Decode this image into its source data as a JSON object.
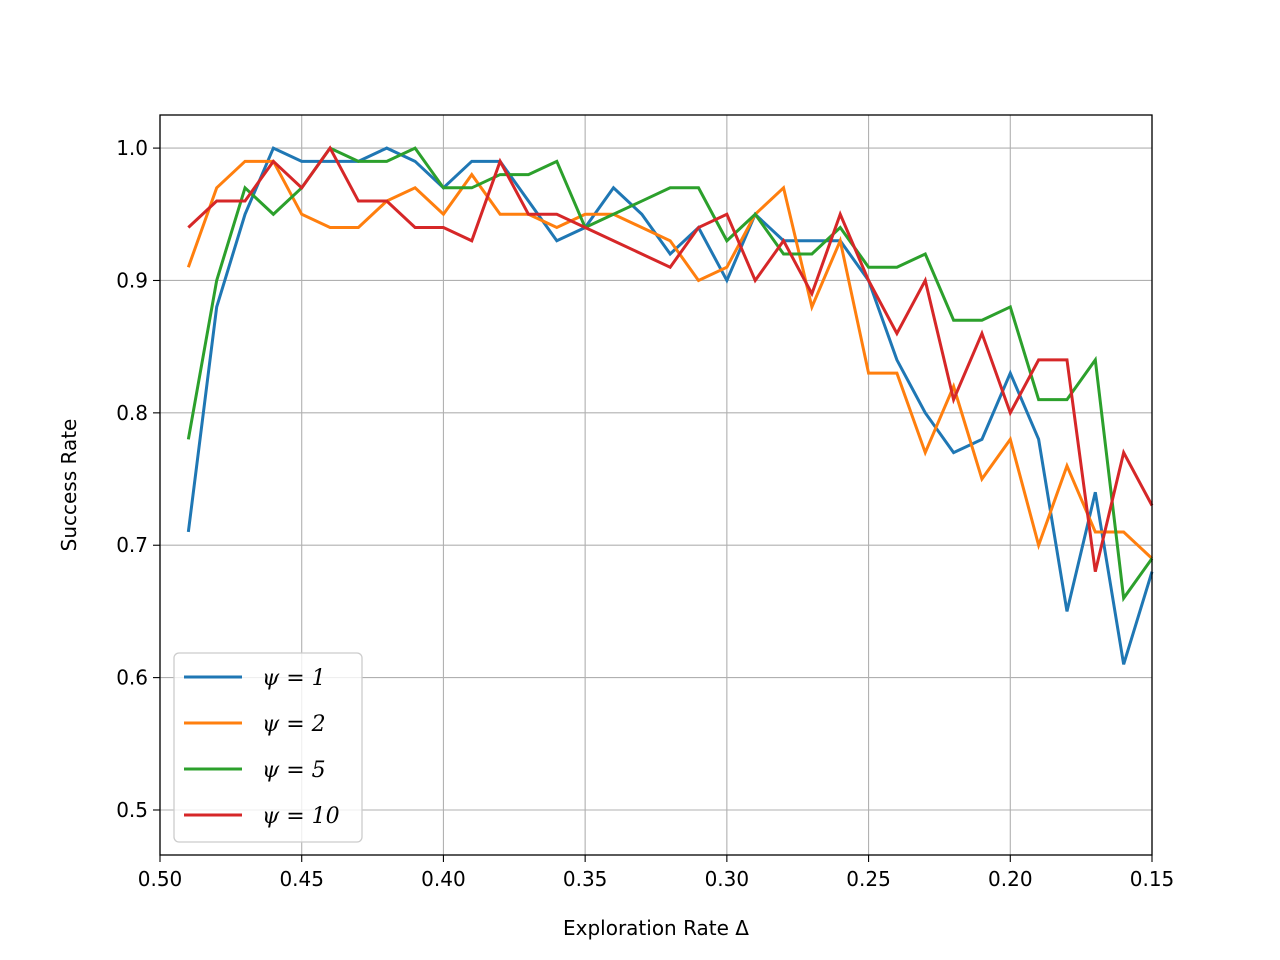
{
  "chart_data": {
    "type": "line",
    "xlabel": "Exploration Rate Δ",
    "ylabel": "Success Rate",
    "xlim": [
      0.5,
      0.15
    ],
    "ylim": [
      0.466,
      1.025
    ],
    "x_ticks": [
      "0.50",
      "0.45",
      "0.40",
      "0.35",
      "0.30",
      "0.25",
      "0.20",
      "0.15"
    ],
    "y_ticks": [
      "0.5",
      "0.6",
      "0.7",
      "0.8",
      "0.9",
      "1.0"
    ],
    "grid": true,
    "legend_position": "lower-left",
    "x": [
      0.49,
      0.48,
      0.47,
      0.46,
      0.45,
      0.44,
      0.43,
      0.42,
      0.41,
      0.4,
      0.39,
      0.38,
      0.37,
      0.36,
      0.35,
      0.34,
      0.33,
      0.32,
      0.31,
      0.3,
      0.29,
      0.28,
      0.27,
      0.26,
      0.25,
      0.24,
      0.23,
      0.22,
      0.21,
      0.2,
      0.19,
      0.18,
      0.17,
      0.16,
      0.15
    ],
    "series": [
      {
        "name": "ψ = 1",
        "color": "#1f77b4",
        "values": [
          0.71,
          0.88,
          0.95,
          1.0,
          0.99,
          0.99,
          0.99,
          1.0,
          0.99,
          0.97,
          0.99,
          0.99,
          0.96,
          0.93,
          0.94,
          0.97,
          0.95,
          0.92,
          0.94,
          0.9,
          0.95,
          0.93,
          0.93,
          0.93,
          0.9,
          0.84,
          0.8,
          0.77,
          0.78,
          0.83,
          0.78,
          0.65,
          0.74,
          0.61,
          0.68
        ]
      },
      {
        "name": "ψ = 2",
        "color": "#ff7f0e",
        "values": [
          0.91,
          0.97,
          0.99,
          0.99,
          0.95,
          0.94,
          0.94,
          0.96,
          0.97,
          0.95,
          0.98,
          0.95,
          0.95,
          0.94,
          0.95,
          0.95,
          0.94,
          0.93,
          0.9,
          0.91,
          0.95,
          0.97,
          0.88,
          0.93,
          0.83,
          0.83,
          0.77,
          0.82,
          0.75,
          0.78,
          0.7,
          0.76,
          0.71,
          0.71,
          0.69
        ]
      },
      {
        "name": "ψ = 5",
        "color": "#2ca02c",
        "values": [
          0.78,
          0.9,
          0.97,
          0.95,
          0.97,
          1.0,
          0.99,
          0.99,
          1.0,
          0.97,
          0.97,
          0.98,
          0.98,
          0.99,
          0.94,
          0.95,
          0.96,
          0.97,
          0.97,
          0.93,
          0.95,
          0.92,
          0.92,
          0.94,
          0.91,
          0.91,
          0.92,
          0.87,
          0.87,
          0.88,
          0.81,
          0.81,
          0.84,
          0.66,
          0.69
        ]
      },
      {
        "name": "ψ = 10",
        "color": "#d62728",
        "values": [
          0.94,
          0.96,
          0.96,
          0.99,
          0.97,
          1.0,
          0.96,
          0.96,
          0.94,
          0.94,
          0.93,
          0.99,
          0.95,
          0.95,
          0.94,
          0.93,
          0.92,
          0.91,
          0.94,
          0.95,
          0.9,
          0.93,
          0.89,
          0.95,
          0.9,
          0.86,
          0.9,
          0.81,
          0.86,
          0.8,
          0.84,
          0.84,
          0.68,
          0.77,
          0.73
        ]
      }
    ]
  }
}
